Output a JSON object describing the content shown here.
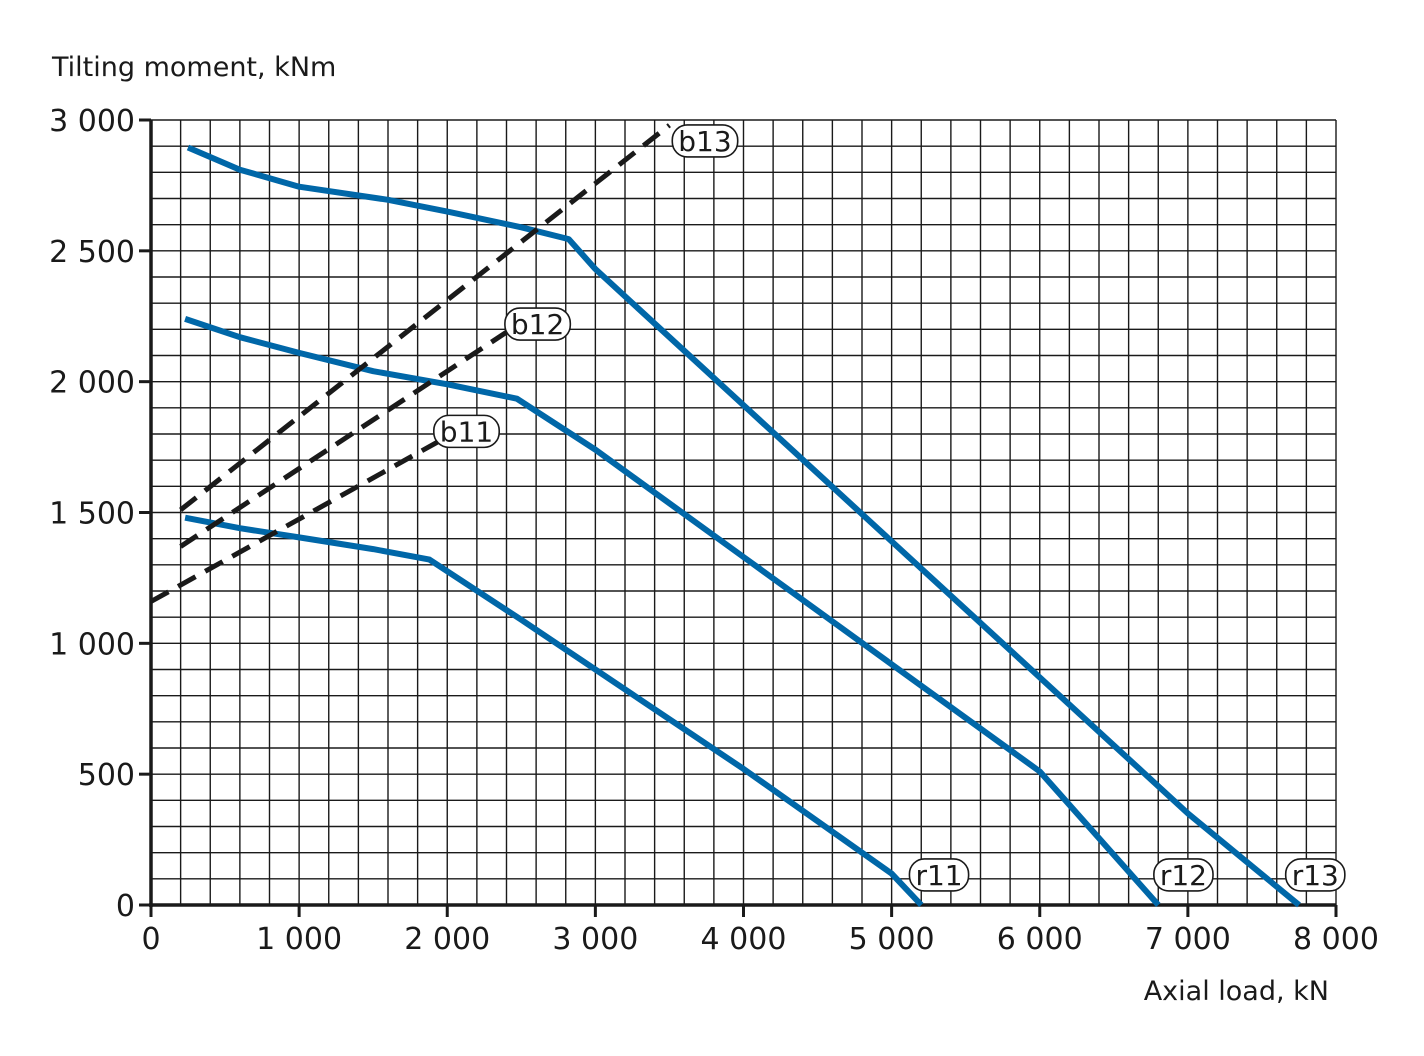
{
  "chart_data": {
    "type": "line",
    "ylabel": "Tilting moment, kNm",
    "xlabel": "Axial load, kN",
    "xlim": [
      0,
      8000
    ],
    "ylim": [
      0,
      3000
    ],
    "x_ticks": [
      {
        "value": 0,
        "label": "0"
      },
      {
        "value": 1000,
        "label": "1 000"
      },
      {
        "value": 2000,
        "label": "2 000"
      },
      {
        "value": 3000,
        "label": "3 000"
      },
      {
        "value": 4000,
        "label": "4 000"
      },
      {
        "value": 5000,
        "label": "5 000"
      },
      {
        "value": 6000,
        "label": "6 000"
      },
      {
        "value": 7000,
        "label": "7 000"
      },
      {
        "value": 8000,
        "label": "8 000"
      }
    ],
    "y_ticks": [
      {
        "value": 0,
        "label": "0"
      },
      {
        "value": 500,
        "label": "500"
      },
      {
        "value": 1000,
        "label": "1 000"
      },
      {
        "value": 1500,
        "label": "1 500"
      },
      {
        "value": 2000,
        "label": "2 000"
      },
      {
        "value": 2500,
        "label": "2 500"
      },
      {
        "value": 3000,
        "label": "3 000"
      }
    ],
    "grid": true,
    "grid_x_step": 200,
    "grid_y_step": 100,
    "series": [
      {
        "name": "r11",
        "style": "solid",
        "color": "#0067a8",
        "points": [
          [
            230,
            1480
          ],
          [
            600,
            1440
          ],
          [
            1000,
            1405
          ],
          [
            1500,
            1360
          ],
          [
            1880,
            1320
          ],
          [
            2500,
            1090
          ],
          [
            3000,
            900
          ],
          [
            4000,
            520
          ],
          [
            5000,
            120
          ],
          [
            5200,
            0
          ]
        ]
      },
      {
        "name": "r12",
        "style": "solid",
        "color": "#0067a8",
        "points": [
          [
            230,
            2240
          ],
          [
            600,
            2170
          ],
          [
            1000,
            2110
          ],
          [
            1500,
            2040
          ],
          [
            2000,
            1990
          ],
          [
            2470,
            1935
          ],
          [
            3000,
            1740
          ],
          [
            4000,
            1330
          ],
          [
            5000,
            920
          ],
          [
            6000,
            510
          ],
          [
            6800,
            0
          ]
        ]
      },
      {
        "name": "r13",
        "style": "solid",
        "color": "#0067a8",
        "points": [
          [
            250,
            2895
          ],
          [
            600,
            2810
          ],
          [
            1000,
            2745
          ],
          [
            1600,
            2695
          ],
          [
            2000,
            2650
          ],
          [
            2500,
            2590
          ],
          [
            2820,
            2545
          ],
          [
            3000,
            2430
          ],
          [
            4000,
            1910
          ],
          [
            5000,
            1390
          ],
          [
            6000,
            870
          ],
          [
            7000,
            350
          ],
          [
            7750,
            0
          ]
        ]
      },
      {
        "name": "b11",
        "style": "dashed",
        "color": "#1a1a1a",
        "points": [
          [
            0,
            1160
          ],
          [
            2000,
            1790
          ]
        ]
      },
      {
        "name": "b12",
        "style": "dashed",
        "color": "#1a1a1a",
        "points": [
          [
            200,
            1370
          ],
          [
            2430,
            2200
          ]
        ]
      },
      {
        "name": "b13",
        "style": "dashed",
        "color": "#1a1a1a",
        "points": [
          [
            200,
            1510
          ],
          [
            3500,
            2980
          ]
        ]
      }
    ],
    "labels": [
      {
        "text": "r11",
        "x": 5320,
        "y": 115
      },
      {
        "text": "r12",
        "x": 6970,
        "y": 115
      },
      {
        "text": "r13",
        "x": 7860,
        "y": 115
      },
      {
        "text": "b11",
        "x": 2130,
        "y": 1810
      },
      {
        "text": "b12",
        "x": 2610,
        "y": 2220
      },
      {
        "text": "b13",
        "x": 3740,
        "y": 2920
      }
    ]
  }
}
